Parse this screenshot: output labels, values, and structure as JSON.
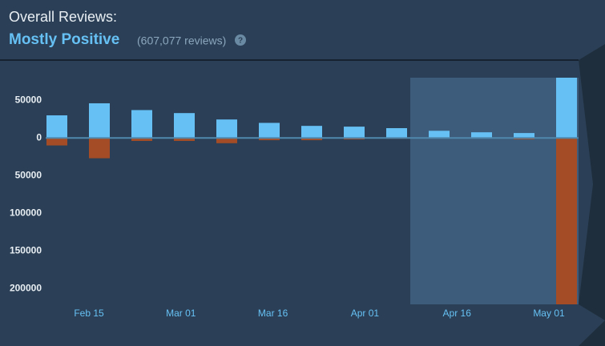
{
  "header": {
    "title": "Overall Reviews:",
    "summary": "Mostly Positive",
    "count": "(607,077 reviews)",
    "help": "?"
  },
  "chart_data": {
    "type": "bar",
    "categories": [
      null,
      null,
      null,
      null,
      null,
      null,
      null,
      null,
      null,
      null,
      null,
      null,
      null
    ],
    "series": [
      {
        "color": "#66c0f4",
        "values": [
          30000,
          46000,
          37000,
          33000,
          24500,
          20000,
          16000,
          15000,
          13000,
          9500,
          7500,
          6500,
          80000
        ]
      },
      {
        "color": "#a34c25",
        "values": [
          -10000,
          -27000,
          -4000,
          -4000,
          -7000,
          -3000,
          -3000,
          -2000,
          -1000,
          -500,
          -500,
          -2000,
          -221000
        ]
      }
    ],
    "xticks": [
      "Feb 15",
      "Mar 01",
      "Mar 16",
      "Apr 01",
      "Apr 16",
      "May 01"
    ],
    "ylim": [
      -221000,
      80000
    ],
    "yticks": [
      {
        "value": -200000,
        "label": "200000"
      },
      {
        "value": -150000,
        "label": "150000"
      },
      {
        "value": -100000,
        "label": "100000"
      },
      {
        "value": -50000,
        "label": "50000"
      },
      0,
      50000
    ]
  }
}
